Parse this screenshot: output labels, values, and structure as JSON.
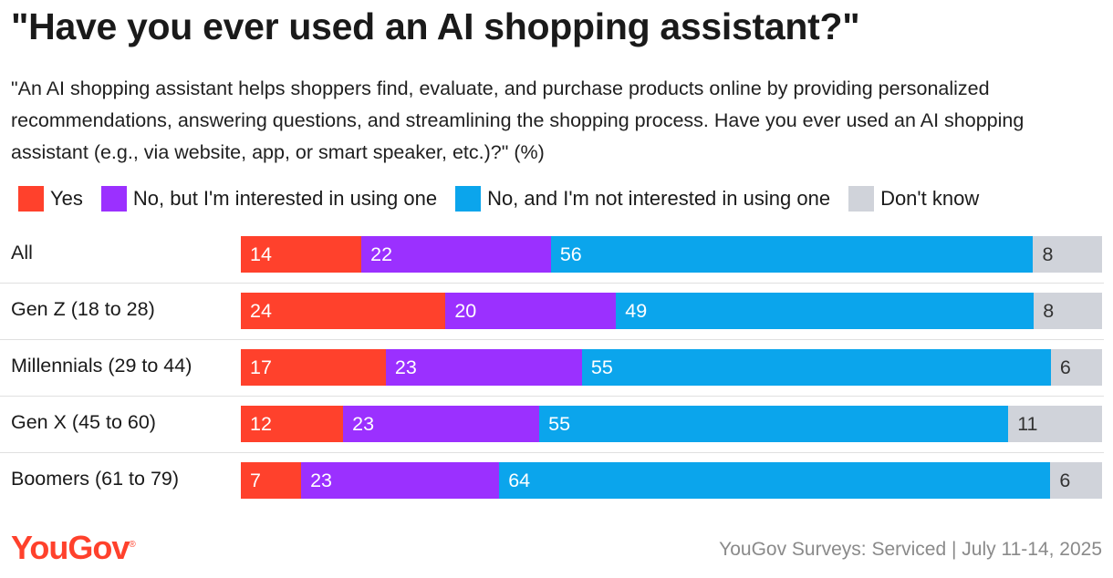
{
  "title": "\"Have you ever used an AI shopping assistant?\"",
  "subtitle": "\"An AI shopping assistant helps shoppers find, evaluate, and purchase products online by providing personalized recommendations, answering questions, and streamlining the shopping process. Have you ever used an AI shopping assistant (e.g., via website, app, or smart speaker, etc.)?\" (%)",
  "legend": [
    {
      "label": "Yes",
      "color": "#ff412c"
    },
    {
      "label": "No, but I'm interested in using one",
      "color": "#9b30ff"
    },
    {
      "label": "No, and I'm not interested in using one",
      "color": "#0ba5ec"
    },
    {
      "label": "Don't know",
      "color": "#d0d3da"
    }
  ],
  "chart_data": {
    "type": "bar",
    "orientation": "horizontal",
    "stacked": true,
    "unit": "%",
    "categories": [
      "All",
      "Gen Z (18 to 28)",
      "Millennials (29 to 44)",
      "Gen X (45 to 60)",
      "Boomers (61 to 79)"
    ],
    "series": [
      {
        "name": "Yes",
        "color": "#ff412c",
        "values": [
          14,
          24,
          17,
          12,
          7
        ]
      },
      {
        "name": "No, but I'm interested in using one",
        "color": "#9b30ff",
        "values": [
          22,
          20,
          23,
          23,
          23
        ]
      },
      {
        "name": "No, and I'm not interested in using one",
        "color": "#0ba5ec",
        "values": [
          56,
          49,
          55,
          55,
          64
        ]
      },
      {
        "name": "Don't know",
        "color": "#d0d3da",
        "values": [
          8,
          8,
          6,
          11,
          6
        ]
      }
    ]
  },
  "brand": {
    "name": "YouGov",
    "mark": "®"
  },
  "source": "YouGov Surveys: Serviced | July 11-14, 2025"
}
